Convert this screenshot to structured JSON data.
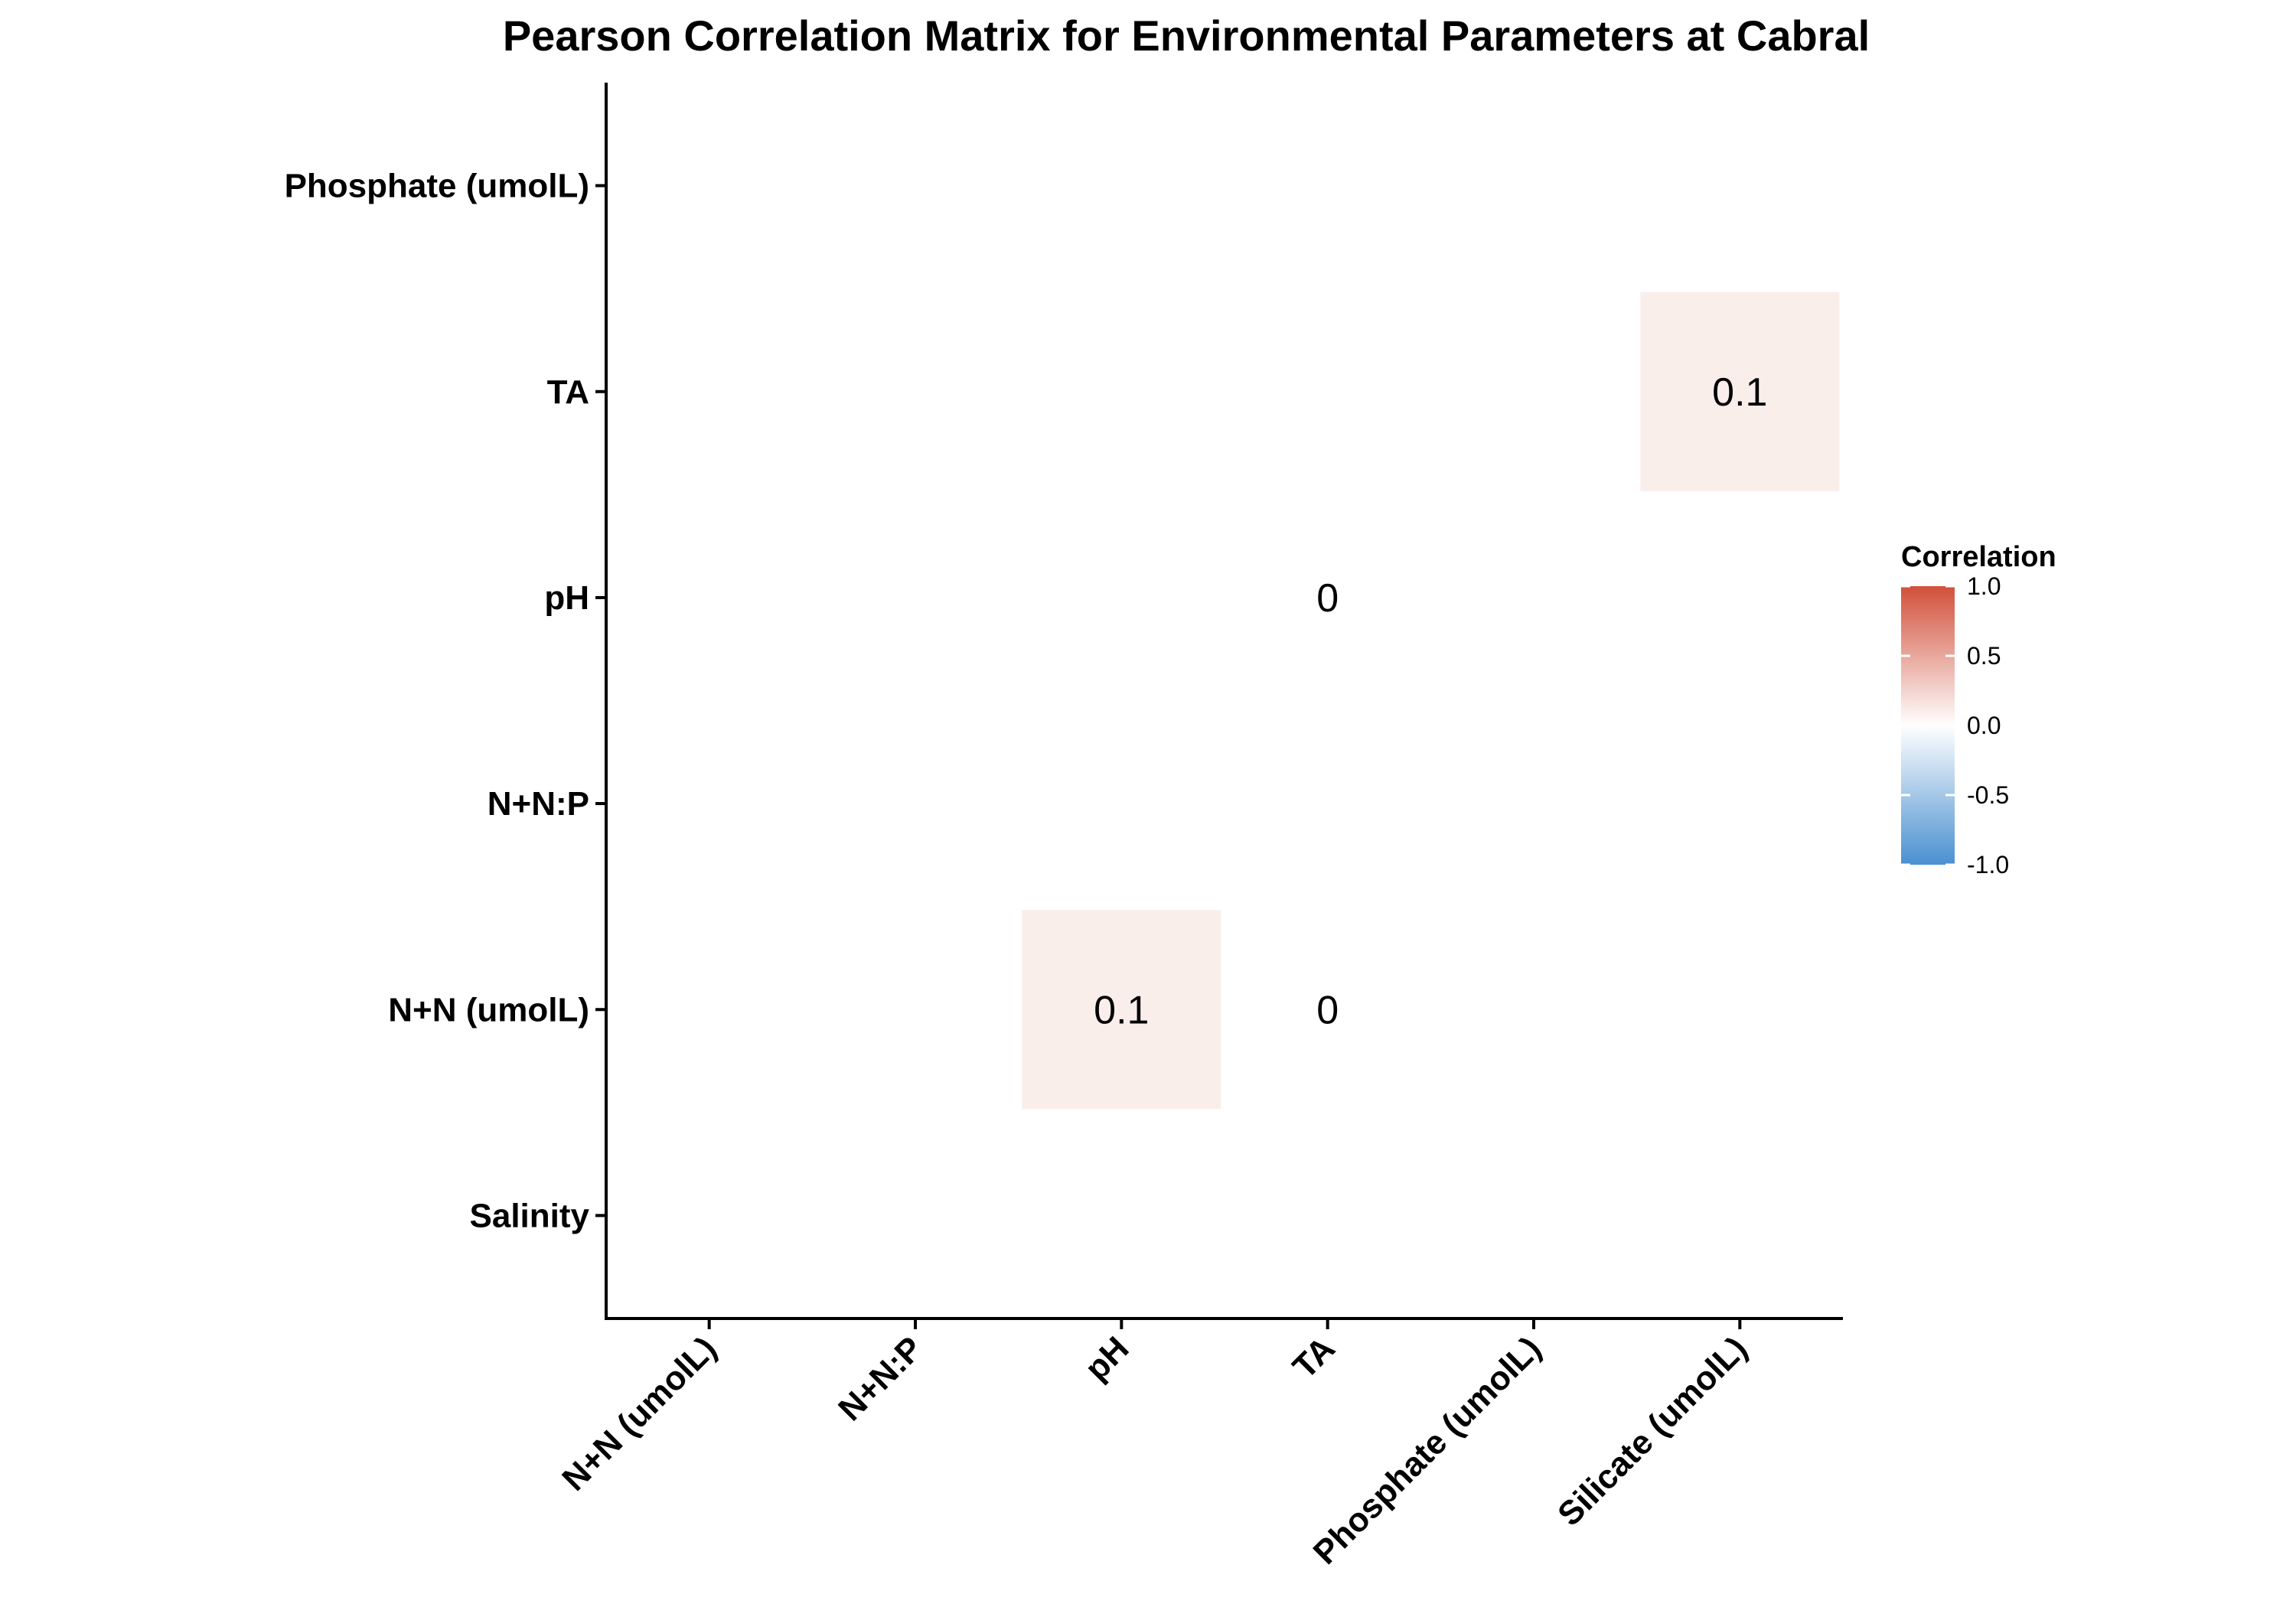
{
  "chart_data": {
    "type": "heatmap",
    "title": "Pearson Correlation Matrix for Environmental Parameters at Cabral",
    "xlabel": "",
    "ylabel": "",
    "x_categories": [
      "N+N (umolL)",
      "N+N:P",
      "pH",
      "TA",
      "Phosphate (umolL)",
      "Silicate (umolL)"
    ],
    "y_categories": [
      "Salinity",
      "N+N (umolL)",
      "N+N:P",
      "pH",
      "TA",
      "Phosphate (umolL)"
    ],
    "cells": [
      {
        "x": "pH",
        "y": "N+N (umolL)",
        "value": 0.1,
        "label": "0.1"
      },
      {
        "x": "TA",
        "y": "N+N (umolL)",
        "value": 0,
        "label": "0"
      },
      {
        "x": "TA",
        "y": "pH",
        "value": 0,
        "label": "0"
      },
      {
        "x": "Silicate (umolL)",
        "y": "TA",
        "value": 0.1,
        "label": "0.1"
      }
    ],
    "color_scale": {
      "low": "#4a90d0",
      "mid": "#ffffff",
      "high": "#d1503a",
      "limits": [
        -1.0,
        1.0
      ]
    },
    "legend": {
      "title": "Correlation",
      "ticks": [
        1.0,
        0.5,
        0.0,
        -0.5,
        -1.0
      ],
      "tick_labels": [
        "1.0",
        "0.5",
        "0.0",
        "-0.5",
        "-1.0"
      ],
      "position": "right"
    },
    "grid": false
  }
}
